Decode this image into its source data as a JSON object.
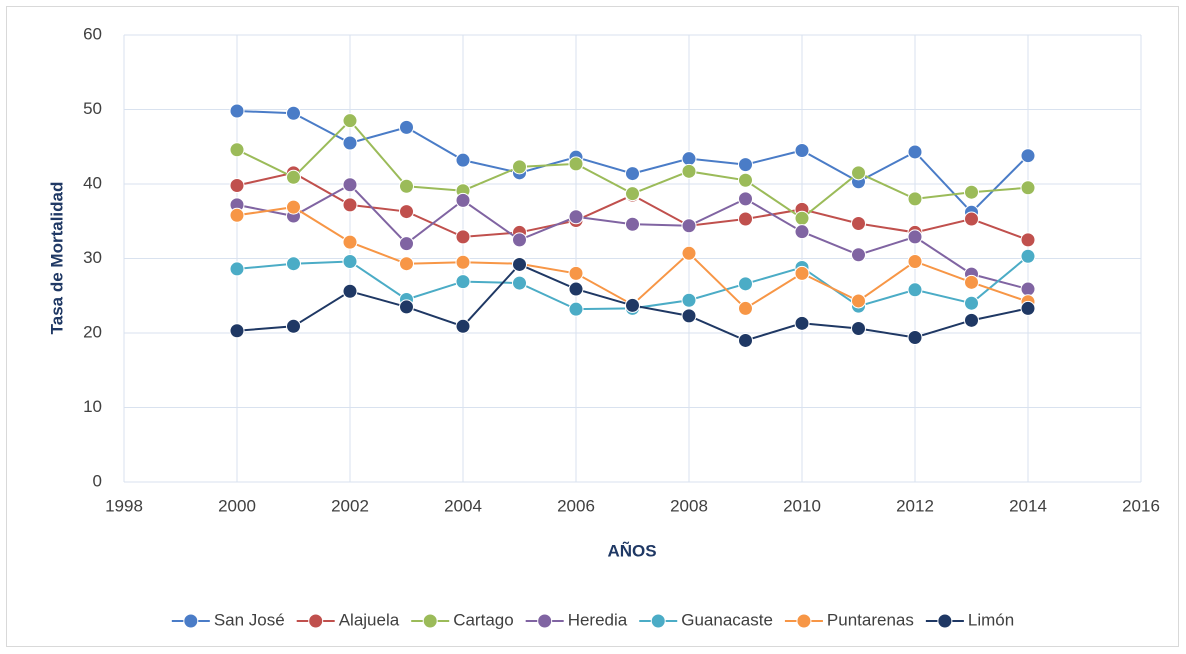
{
  "chart_data": {
    "type": "line",
    "xlabel": "AÑOS",
    "ylabel": "Tasa de Mortalidad",
    "x": [
      2000,
      2001,
      2002,
      2003,
      2004,
      2005,
      2006,
      2007,
      2008,
      2009,
      2010,
      2011,
      2012,
      2013,
      2014
    ],
    "xlim": [
      1998,
      2016
    ],
    "xticks": [
      1998,
      2000,
      2002,
      2004,
      2006,
      2008,
      2010,
      2012,
      2014,
      2016
    ],
    "ylim": [
      0,
      60
    ],
    "yticks": [
      0,
      10,
      20,
      30,
      40,
      50,
      60
    ],
    "grid": true,
    "legend": "bottom",
    "series": [
      {
        "name": "San José",
        "color": "#4a7cc7",
        "values": [
          49.8,
          49.5,
          45.5,
          47.6,
          43.2,
          41.5,
          43.6,
          41.4,
          43.4,
          42.6,
          44.5,
          40.3,
          44.3,
          36.2,
          43.8
        ]
      },
      {
        "name": "Alajuela",
        "color": "#c0504d",
        "values": [
          39.8,
          41.5,
          37.2,
          36.3,
          32.9,
          33.5,
          35.1,
          38.5,
          34.4,
          35.3,
          36.6,
          34.7,
          33.5,
          35.3,
          32.5
        ]
      },
      {
        "name": "Cartago",
        "color": "#9bbb59",
        "values": [
          44.6,
          40.9,
          48.5,
          39.7,
          39.1,
          42.3,
          42.7,
          38.7,
          41.7,
          40.5,
          35.4,
          41.5,
          38.0,
          38.9,
          39.5
        ]
      },
      {
        "name": "Heredia",
        "color": "#8064a2",
        "values": [
          37.2,
          35.7,
          39.9,
          32.0,
          37.8,
          32.5,
          35.6,
          34.6,
          34.4,
          38.0,
          33.6,
          30.5,
          32.9,
          27.9,
          25.9
        ]
      },
      {
        "name": "Guanacaste",
        "color": "#4bacc6",
        "values": [
          28.6,
          29.3,
          29.6,
          24.5,
          26.9,
          26.7,
          23.2,
          23.3,
          24.4,
          26.6,
          28.8,
          23.6,
          25.8,
          24.0,
          30.3
        ]
      },
      {
        "name": "Puntarenas",
        "color": "#f79646",
        "values": [
          35.8,
          36.9,
          32.2,
          29.3,
          29.5,
          29.3,
          28.0,
          23.8,
          30.7,
          23.3,
          28.0,
          24.3,
          29.6,
          26.8,
          24.2
        ]
      },
      {
        "name": "Limón",
        "color": "#1f3864",
        "values": [
          20.3,
          20.9,
          25.6,
          23.5,
          20.9,
          29.2,
          25.9,
          23.7,
          22.3,
          19.0,
          21.3,
          20.6,
          19.4,
          21.7,
          23.3
        ]
      }
    ]
  }
}
